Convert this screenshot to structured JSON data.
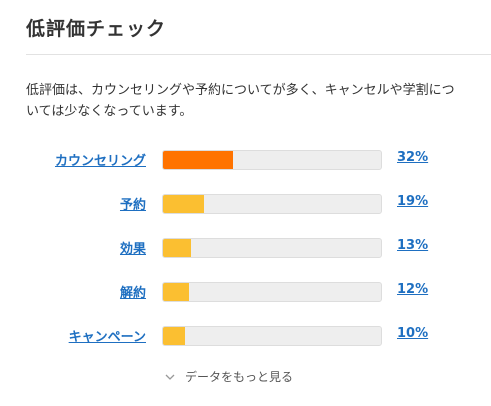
{
  "section": {
    "title": "低評価チェック",
    "description": "低評価は、カウンセリングや予約についてが多く、キャンセルや学割については少なくなっています。"
  },
  "rows": [
    {
      "label": "カウンセリング",
      "percent_label": "32%",
      "fill_percent": 32,
      "color": "#ff7300"
    },
    {
      "label": "予約",
      "percent_label": "19%",
      "fill_percent": 19,
      "color": "#fbbf31"
    },
    {
      "label": "効果",
      "percent_label": "13%",
      "fill_percent": 13,
      "color": "#fbbf31"
    },
    {
      "label": "解約",
      "percent_label": "12%",
      "fill_percent": 12,
      "color": "#fbbf31"
    },
    {
      "label": "キャンペーン",
      "percent_label": "10%",
      "fill_percent": 10,
      "color": "#fbbf31"
    }
  ],
  "more_link": {
    "label": "データをもっと見る",
    "icon": "chevron-down-icon"
  },
  "colors": {
    "link": "#1e6fc1",
    "accent_primary": "#ff7300",
    "accent_secondary": "#fbbf31",
    "track": "#eeeeee"
  }
}
